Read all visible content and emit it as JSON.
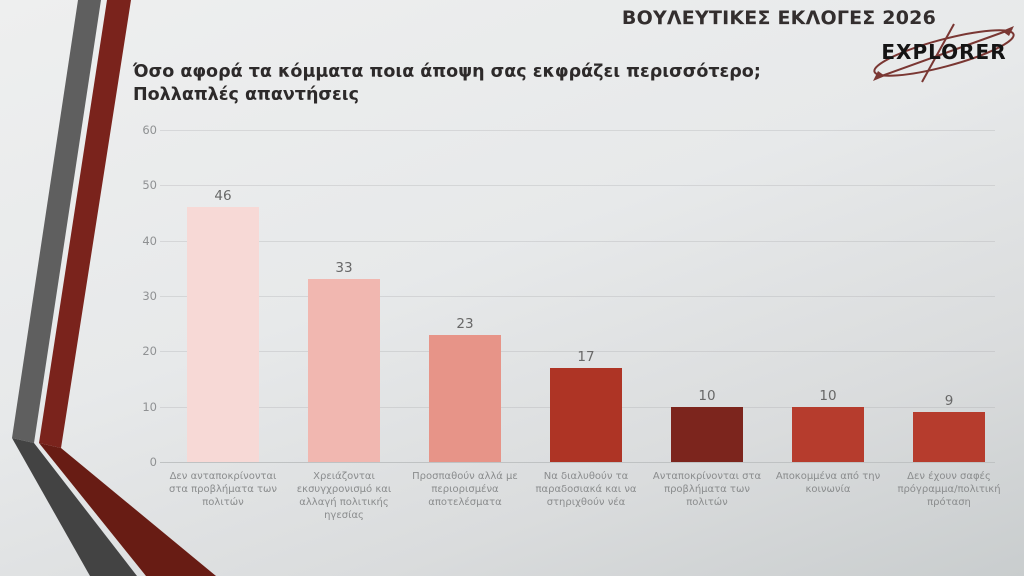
{
  "header": {
    "title": "ΒΟΥΛΕΥΤΙΚΕΣ ΕΚΛΟΓΕΣ 2026"
  },
  "logo": {
    "text": "EXPLORER",
    "accent_color": "#7a3733",
    "text_color": "#141414"
  },
  "slide_title": {
    "line1": "Όσο αφορά τα κόμματα ποια άποψη σας εκφράζει περισσότερο;",
    "line2": "Πολλαπλές απαντήσεις"
  },
  "chart_data": {
    "type": "bar",
    "title": "Όσο αφορά τα κόμματα ποια άποψη σας εκφράζει περισσότερο; Πολλαπλές απαντήσεις",
    "categories": [
      "Δεν ανταποκρίνονται στα προβλήματα των πολιτών",
      "Χρειάζονται εκσυγχρονισμό και αλλαγή πολιτικής ηγεσίας",
      "Προσπαθούν αλλά με περιορισμένα αποτελέσματα",
      "Να διαλυθούν τα παραδοσιακά και να στηριχθούν νέα",
      "Ανταποκρίνονται στα προβλήματα των πολιτών",
      "Αποκομμένα από την κοινωνία",
      "Δεν έχουν σαφές πρόγραμμα/πολιτική πρόταση"
    ],
    "values": [
      46,
      33,
      23,
      17,
      10,
      10,
      9
    ],
    "bar_colors": [
      "#f7d9d6",
      "#f1b7b0",
      "#e79488",
      "#ae3425",
      "#7c251d",
      "#b63c2d",
      "#b63c2d"
    ],
    "y_ticks": [
      0,
      10,
      20,
      30,
      40,
      50,
      60
    ],
    "ylim": [
      0,
      60
    ],
    "grid": true,
    "legend": false,
    "xlabel": "",
    "ylabel": ""
  },
  "decoration": {
    "ribbon_gray_upper": "#5f5f5f",
    "ribbon_gray_lower": "#434343",
    "ribbon_red_upper": "#7a231c",
    "ribbon_red_lower": "#681c14"
  }
}
